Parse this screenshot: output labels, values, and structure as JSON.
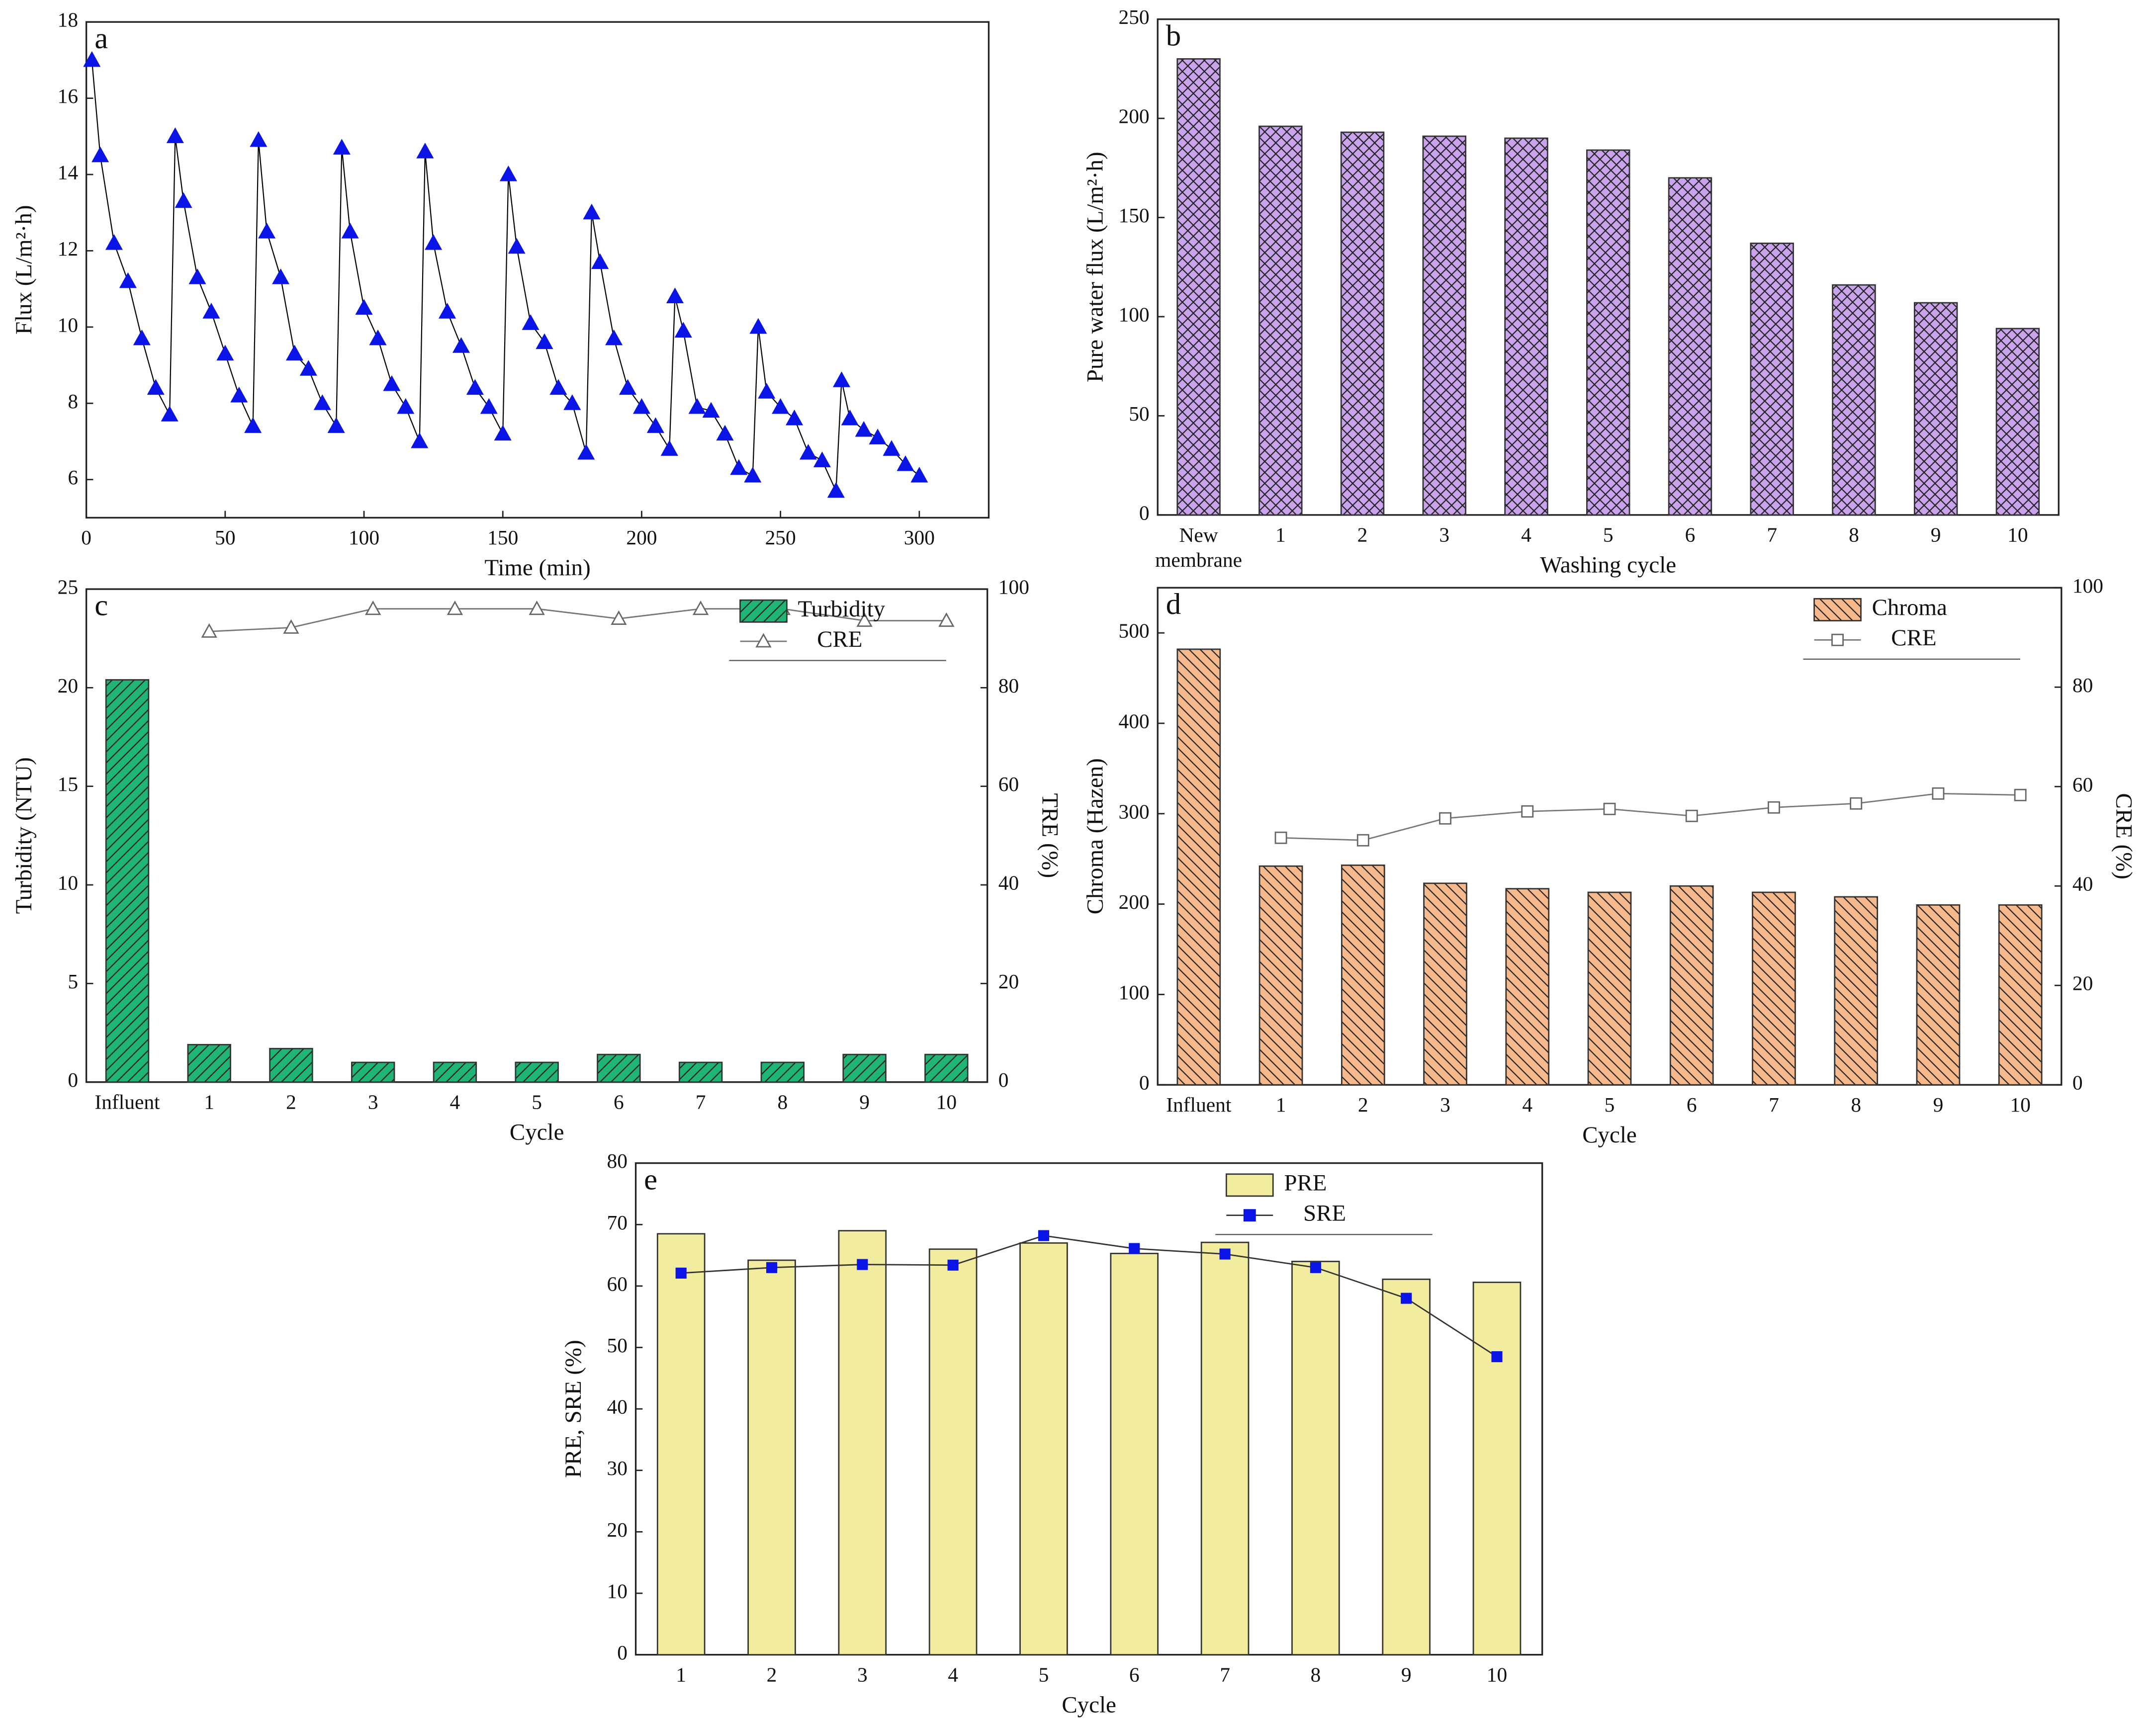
{
  "chart_data": [
    {
      "type": "line",
      "panel": "a",
      "xlabel": "Time (min)",
      "ylabel": "Flux (L/m²·h)",
      "x": [
        2,
        5,
        10,
        15,
        20,
        25,
        30,
        32,
        35,
        40,
        45,
        50,
        55,
        60,
        62,
        65,
        70,
        75,
        80,
        85,
        90,
        92,
        95,
        100,
        105,
        110,
        115,
        120,
        122,
        125,
        130,
        135,
        140,
        145,
        150,
        152,
        155,
        160,
        165,
        170,
        175,
        180,
        182,
        185,
        190,
        195,
        200,
        205,
        210,
        212,
        215,
        220,
        225,
        230,
        235,
        240,
        242,
        245,
        250,
        255,
        260,
        265,
        270,
        272,
        275,
        280,
        285,
        290,
        295,
        300
      ],
      "values": [
        17.0,
        14.5,
        12.2,
        11.2,
        9.7,
        8.4,
        7.7,
        15.0,
        13.3,
        11.3,
        10.4,
        9.3,
        8.2,
        7.4,
        14.9,
        12.5,
        11.3,
        9.3,
        8.9,
        8.0,
        7.4,
        14.7,
        12.5,
        10.5,
        9.7,
        8.5,
        7.9,
        7.0,
        14.6,
        12.2,
        10.4,
        9.5,
        8.4,
        7.9,
        7.2,
        14.0,
        12.1,
        10.1,
        9.6,
        8.4,
        8.0,
        6.7,
        13.0,
        11.7,
        9.7,
        8.4,
        7.9,
        7.4,
        6.8,
        10.8,
        9.9,
        7.9,
        7.8,
        7.2,
        6.3,
        6.1,
        10.0,
        8.3,
        7.9,
        7.6,
        6.7,
        6.5,
        5.7,
        8.6,
        7.6,
        7.3,
        7.1,
        6.8,
        6.4,
        6.1
      ],
      "color": "#000000",
      "marker": "triangle",
      "marker_color": "#0a14e6",
      "xlim": [
        0,
        325
      ],
      "xticks": [
        0,
        50,
        100,
        150,
        200,
        250,
        300
      ],
      "ylim": [
        5,
        18
      ],
      "yticks": [
        6,
        8,
        10,
        12,
        14,
        16,
        18
      ]
    },
    {
      "type": "combo",
      "panel": "b",
      "xlabel": "Washing cycle",
      "ylabel": "Pure water flux (L/m²·h)",
      "categories": [
        "New membrane",
        "1",
        "2",
        "3",
        "4",
        "5",
        "6",
        "7",
        "8",
        "9",
        "10"
      ],
      "series": [
        {
          "type": "bar",
          "color": "#c9a3ec",
          "hatch": "cross",
          "values": [
            230,
            196,
            193,
            191,
            190,
            184,
            170,
            137,
            116,
            107,
            94
          ]
        }
      ],
      "ylim": [
        0,
        250
      ],
      "yticks": [
        0,
        50,
        100,
        150,
        200,
        250
      ]
    },
    {
      "type": "combo",
      "panel": "c",
      "xlabel": "Cycle",
      "ylabel": "Turbidity (NTU)",
      "y2label": "TRE (%)",
      "legend": "upper right",
      "categories": [
        "Influent",
        "1",
        "2",
        "3",
        "4",
        "5",
        "6",
        "7",
        "8",
        "9",
        "10"
      ],
      "series": [
        {
          "name": "Turbidity",
          "type": "bar",
          "color": "#1fb574",
          "hatch": "diag-right",
          "values": [
            20.4,
            1.9,
            1.7,
            1.0,
            1.0,
            1.0,
            1.4,
            1.0,
            1.0,
            1.4,
            1.4
          ]
        },
        {
          "name": "CRE",
          "type": "line",
          "axis": "y2",
          "color": "#777777",
          "marker": "open-triangle",
          "values": [
            null,
            91.4,
            92.2,
            96,
            96,
            96,
            94,
            96,
            96,
            93.6,
            93.6
          ]
        }
      ],
      "ylim": [
        0,
        25
      ],
      "yticks": [
        0,
        5,
        10,
        15,
        20,
        25
      ],
      "y2lim": [
        0,
        100
      ],
      "y2ticks": [
        0,
        20,
        40,
        60,
        80,
        100
      ]
    },
    {
      "type": "combo",
      "panel": "d",
      "xlabel": "Cycle",
      "ylabel": "Chroma (Hazen)",
      "y2label": "CRE (%)",
      "legend": "upper right",
      "categories": [
        "Influent",
        "1",
        "2",
        "3",
        "4",
        "5",
        "6",
        "7",
        "8",
        "9",
        "10"
      ],
      "series": [
        {
          "name": "Chroma",
          "type": "bar",
          "color": "#f6b98b",
          "hatch": "diag-left",
          "values": [
            482,
            242,
            243,
            223,
            217,
            213,
            220,
            213,
            208,
            199,
            199
          ]
        },
        {
          "name": "CRE",
          "type": "line",
          "axis": "y2",
          "color": "#777777",
          "marker": "open-square",
          "values": [
            null,
            49.7,
            49.2,
            53.6,
            55,
            55.5,
            54.1,
            55.8,
            56.6,
            58.6,
            58.3
          ]
        }
      ],
      "ylim": [
        0,
        550
      ],
      "yticks": [
        0,
        100,
        200,
        300,
        400,
        500
      ],
      "y2lim": [
        0,
        100
      ],
      "y2ticks": [
        0,
        20,
        40,
        60,
        80,
        100
      ]
    },
    {
      "type": "combo",
      "panel": "e",
      "xlabel": "Cycle",
      "ylabel": "PRE, SRE (%)",
      "legend": "upper center",
      "categories": [
        "1",
        "2",
        "3",
        "4",
        "5",
        "6",
        "7",
        "8",
        "9",
        "10"
      ],
      "series": [
        {
          "name": "PRE",
          "type": "bar",
          "color": "#f2ec9e",
          "values": [
            68.5,
            64.2,
            69.0,
            66.0,
            67.0,
            65.3,
            67.1,
            64.0,
            61.1,
            60.6
          ]
        },
        {
          "name": "SRE",
          "type": "line",
          "color": "#333333",
          "marker": "square",
          "marker_color": "#0a14e6",
          "values": [
            62.1,
            63.0,
            63.5,
            63.4,
            68.2,
            66.1,
            65.2,
            63.0,
            58.0,
            48.5
          ]
        }
      ],
      "ylim": [
        0,
        80
      ],
      "yticks": [
        0,
        10,
        20,
        30,
        40,
        50,
        60,
        70,
        80
      ]
    }
  ]
}
